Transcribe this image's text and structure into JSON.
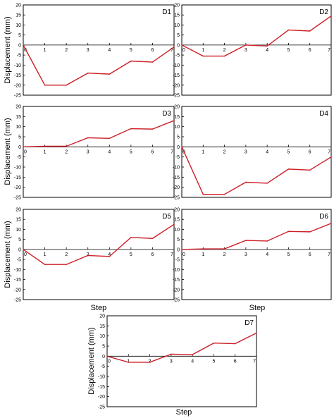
{
  "figure": {
    "ylabel": "Displacement (mm)",
    "xlabel": "Step",
    "line_color": "#cc1f27"
  },
  "chart_data": [
    {
      "type": "line",
      "title": "D1",
      "x": [
        0,
        1,
        2,
        3,
        4,
        5,
        6,
        7
      ],
      "y": [
        0,
        -20,
        -20,
        -14,
        -14.5,
        -8,
        -8.5,
        -1
      ],
      "ylim": [
        -25,
        20
      ],
      "yticks": [
        -25,
        -20,
        -15,
        -10,
        -5,
        0,
        5,
        10,
        15,
        20
      ],
      "xticks": [
        0,
        1,
        2,
        3,
        4,
        5,
        6,
        7
      ],
      "xlabel": "",
      "ylabel": "Displacement (mm)",
      "grid": false
    },
    {
      "type": "line",
      "title": "D2",
      "x": [
        0,
        1,
        2,
        3,
        4,
        5,
        6,
        7
      ],
      "y": [
        0,
        -5.5,
        -5.5,
        0,
        -0.5,
        7.5,
        7,
        14.5
      ],
      "ylim": [
        -25,
        20
      ],
      "yticks": [
        -25,
        -20,
        -15,
        -10,
        -5,
        0,
        5,
        10,
        15,
        20
      ],
      "xticks": [
        0,
        1,
        2,
        3,
        4,
        5,
        6,
        7
      ],
      "xlabel": "",
      "ylabel": "",
      "grid": false
    },
    {
      "type": "line",
      "title": "D3",
      "x": [
        0,
        1,
        2,
        3,
        4,
        5,
        6,
        7
      ],
      "y": [
        0,
        0.3,
        0.3,
        4.5,
        4.2,
        9,
        8.8,
        13
      ],
      "ylim": [
        -25,
        20
      ],
      "yticks": [
        -25,
        -20,
        -15,
        -10,
        -5,
        0,
        5,
        10,
        15,
        20
      ],
      "xticks": [
        0,
        1,
        2,
        3,
        4,
        5,
        6,
        7
      ],
      "xlabel": "",
      "ylabel": "Displacement (mm)",
      "grid": false
    },
    {
      "type": "line",
      "title": "D4",
      "x": [
        0,
        1,
        2,
        3,
        4,
        5,
        6,
        7
      ],
      "y": [
        0,
        -23.5,
        -23.5,
        -17.5,
        -18,
        -11,
        -11.5,
        -5
      ],
      "ylim": [
        -25,
        20
      ],
      "yticks": [
        -25,
        -20,
        -15,
        -10,
        -5,
        0,
        5,
        10,
        15,
        20
      ],
      "xticks": [
        0,
        1,
        2,
        3,
        4,
        5,
        6,
        7
      ],
      "xlabel": "",
      "ylabel": "",
      "grid": false
    },
    {
      "type": "line",
      "title": "D5",
      "x": [
        0,
        1,
        2,
        3,
        4,
        5,
        6,
        7
      ],
      "y": [
        0,
        -7.5,
        -7.5,
        -3,
        -3.5,
        6,
        5.5,
        12.5
      ],
      "ylim": [
        -25,
        20
      ],
      "yticks": [
        -25,
        -20,
        -15,
        -10,
        -5,
        0,
        5,
        10,
        15,
        20
      ],
      "xticks": [
        0,
        1,
        2,
        3,
        4,
        5,
        6,
        7
      ],
      "xlabel": "Step",
      "ylabel": "Displacement (mm)",
      "grid": false
    },
    {
      "type": "line",
      "title": "D6",
      "x": [
        0,
        1,
        2,
        3,
        4,
        5,
        6,
        7
      ],
      "y": [
        0,
        0.3,
        0.3,
        4.5,
        4.2,
        9,
        8.8,
        13
      ],
      "ylim": [
        -25,
        20
      ],
      "yticks": [
        -25,
        -20,
        -15,
        -10,
        -5,
        0,
        5,
        10,
        15,
        20
      ],
      "xticks": [
        0,
        1,
        2,
        3,
        4,
        5,
        6,
        7
      ],
      "xlabel": "Step",
      "ylabel": "",
      "grid": false
    },
    {
      "type": "line",
      "title": "D7",
      "x": [
        0,
        1,
        2,
        3,
        4,
        5,
        6,
        7
      ],
      "y": [
        0,
        -3,
        -3,
        1,
        0.8,
        6.5,
        6.2,
        11.5
      ],
      "ylim": [
        -25,
        20
      ],
      "yticks": [
        -25,
        -20,
        -15,
        -10,
        -5,
        0,
        5,
        10,
        15,
        20
      ],
      "xticks": [
        0,
        1,
        2,
        3,
        4,
        5,
        6,
        7
      ],
      "xlabel": "Step",
      "ylabel": "Displacement (mm)",
      "grid": false
    }
  ]
}
